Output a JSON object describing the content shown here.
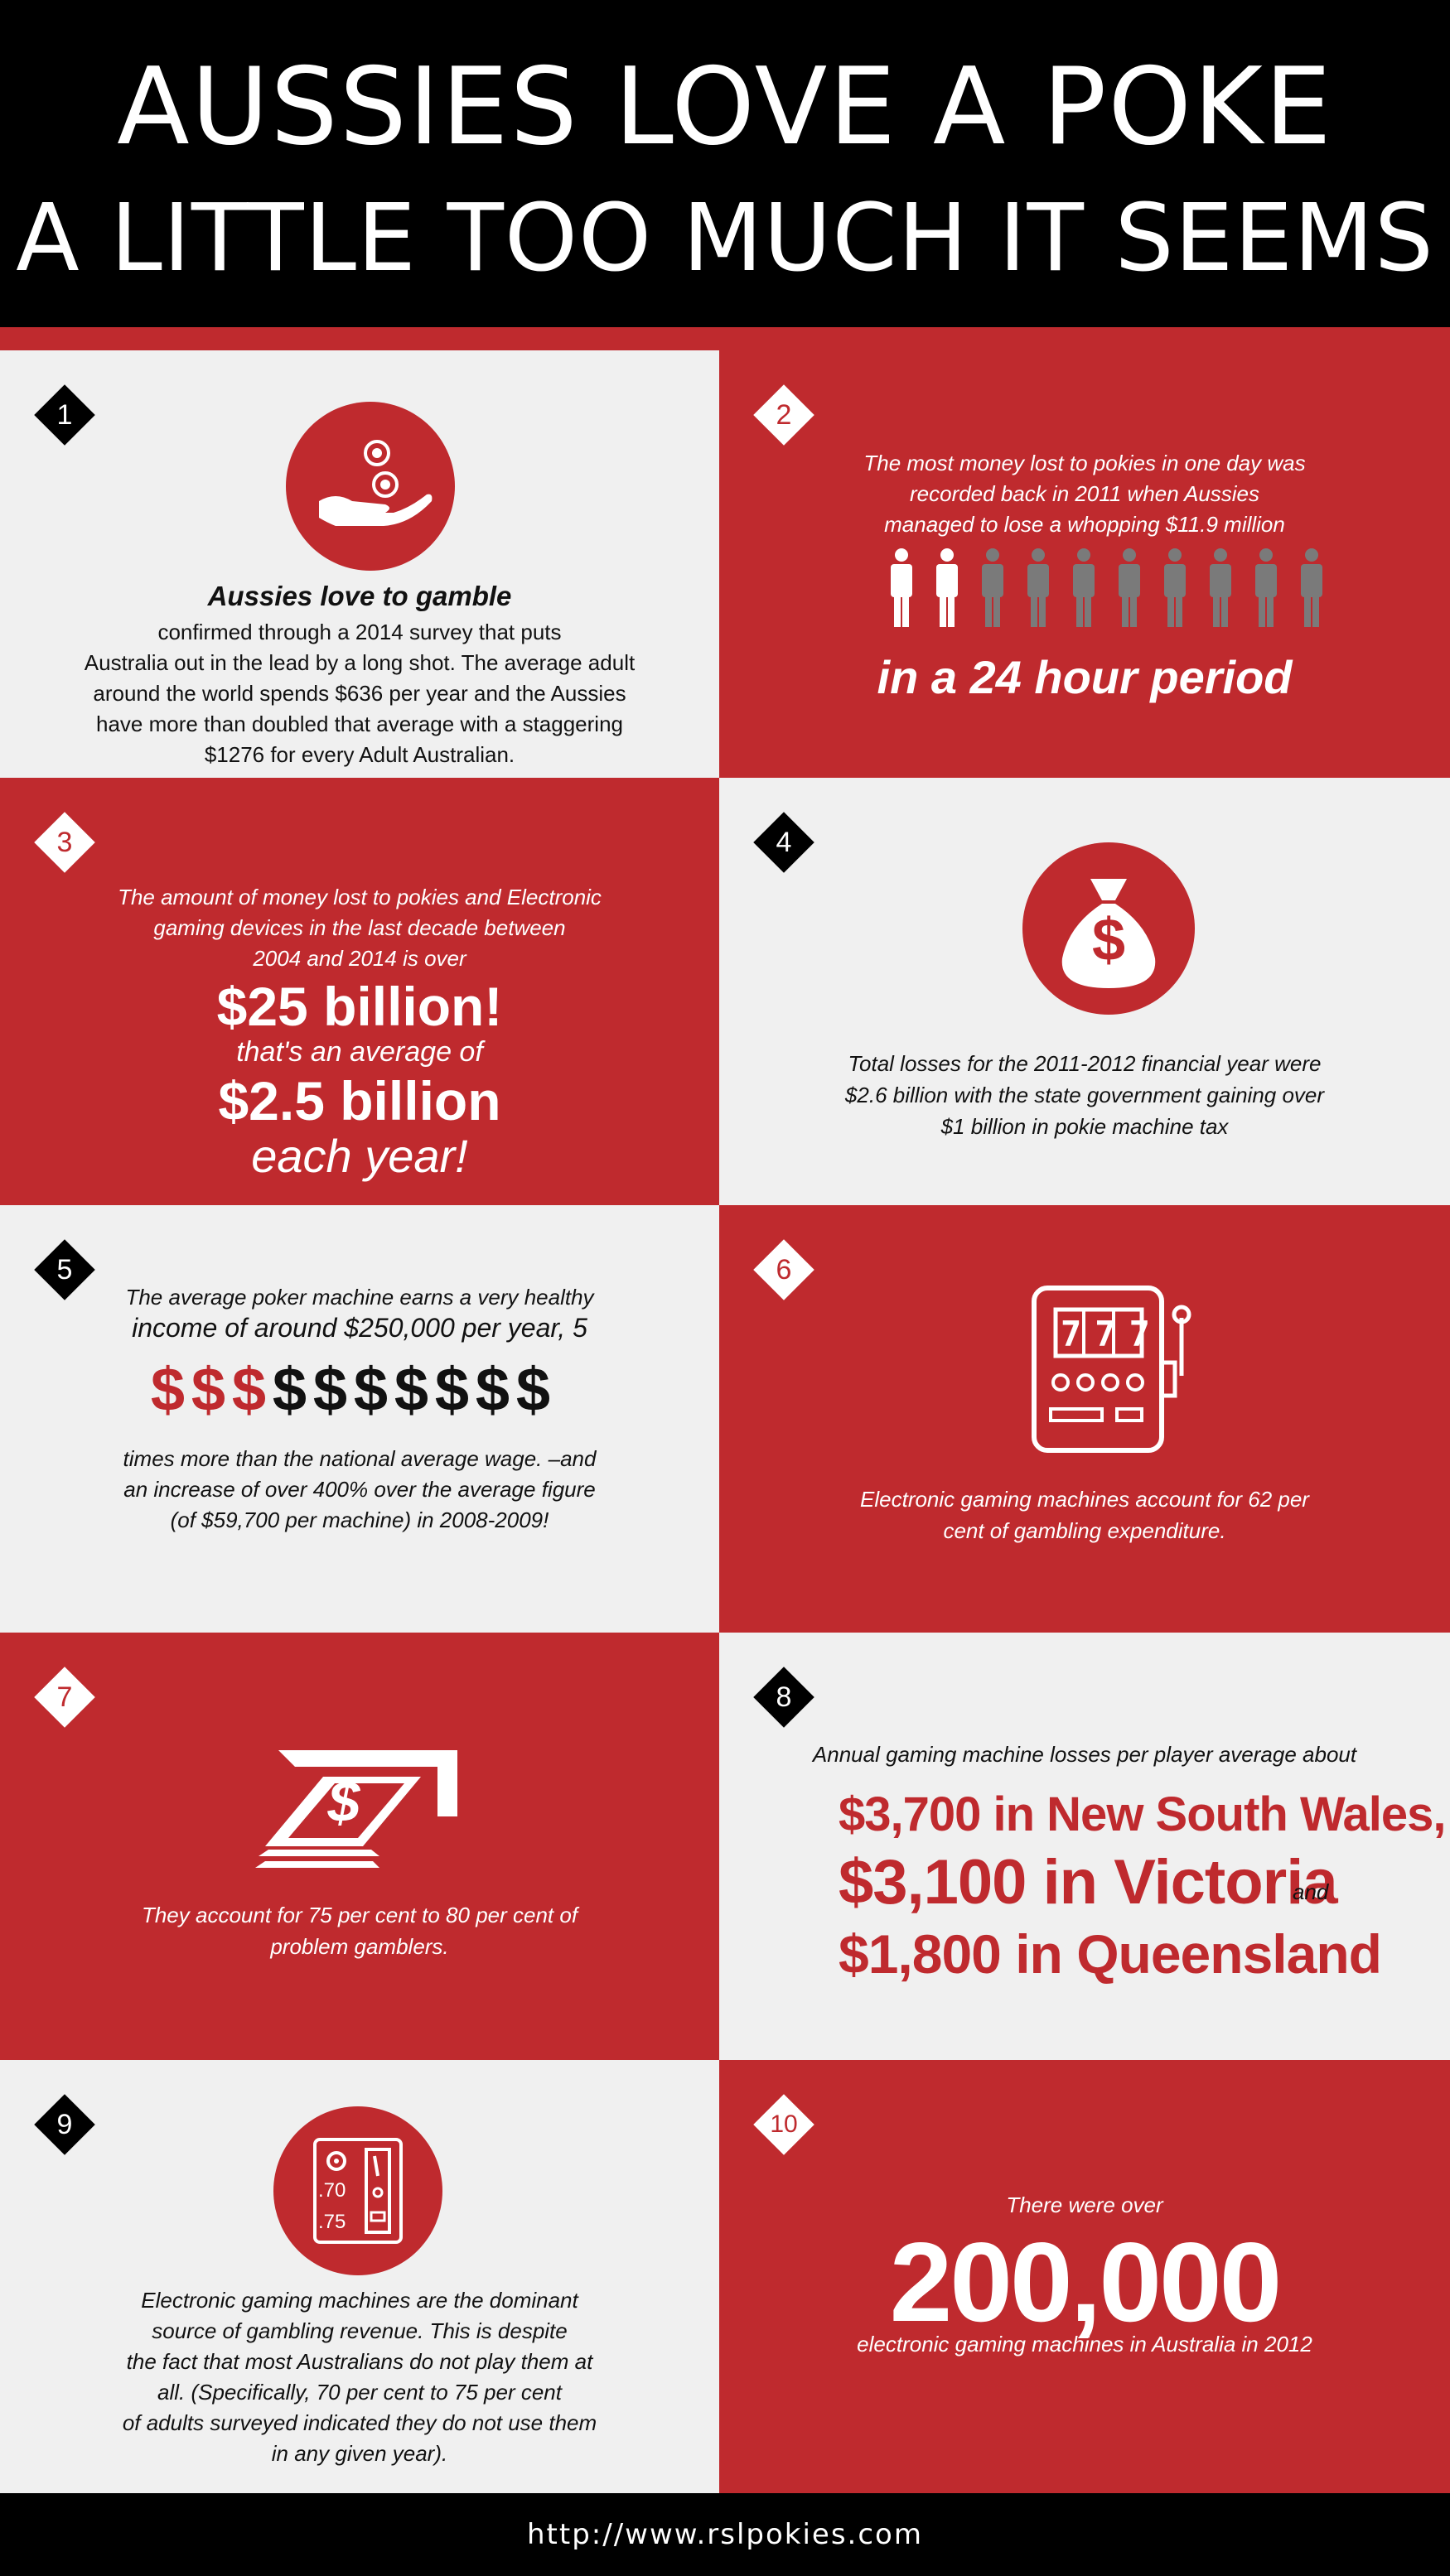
{
  "header": {
    "title_line1": "AUSSIES LOVE A POKE",
    "title_line2": "A LITTLE TOO MUCH IT SEEMS"
  },
  "panels": {
    "p1": {
      "number": "1",
      "heading": "Aussies love to gamble",
      "lines": [
        "confirmed through a 2014 survey that puts",
        "Australia out in the lead by a long shot. The average adult",
        "around the world spends $636 per year and the Aussies",
        "have more than doubled that average with a staggering",
        "$1276 for every Adult Australian."
      ]
    },
    "p2": {
      "number": "2",
      "lines": [
        "The most money lost to pokies in one day was",
        "recorded back in 2011 when Aussies",
        "managed to lose a whopping $11.9 million"
      ],
      "highlighted_people": 2,
      "total_people": 10,
      "big": "in a 24 hour period"
    },
    "p3": {
      "number": "3",
      "lines": [
        "The amount of money lost to pokies and Electronic",
        "gaming devices in the last decade between",
        "2004 and 2014 is over"
      ],
      "big1": "$25 billion!",
      "mid": "that's an average of",
      "big2": "$2.5 billion",
      "big3": "each year!"
    },
    "p4": {
      "number": "4",
      "bag_symbol": "$",
      "lines": [
        "Total losses for the 2011-2012 financial year were",
        "$2.6 billion with the state  government gaining over",
        "$1 billion in pokie machine tax"
      ]
    },
    "p5": {
      "number": "5",
      "line1": "The average poker machine earns a very healthy",
      "line2": "income of around $250,000 per year, 5",
      "dollar_symbol": "$",
      "highlighted_dollars": 3,
      "total_dollars": 10,
      "lines_after": [
        "times more than the national average wage. –and",
        "an increase of over 400% over the average figure",
        "(of $59,700 per machine) in 2008-2009!"
      ]
    },
    "p6": {
      "number": "6",
      "reels": "777",
      "lines": [
        "Electronic gaming machines account for 62 per",
        "cent of gambling expenditure."
      ]
    },
    "p7": {
      "number": "7",
      "bill_symbol": "$",
      "lines": [
        "They account for 75 per cent to 80 per cent of",
        "problem gamblers."
      ]
    },
    "p8": {
      "number": "8",
      "intro": "Annual gaming machine losses per player average about",
      "line1": "$3,700 in New South Wales,",
      "line2": "$3,100 in Victoria",
      "line2_suffix": "and",
      "line3": "$1,800 in Queensland"
    },
    "p9": {
      "number": "9",
      "coin_labels": [
        ".70",
        ".75"
      ],
      "lines": [
        "Electronic gaming machines are the dominant",
        "source of gambling revenue. This is despite",
        "the fact that most Australians do not play them at",
        "all. (Specifically, 70 per cent to 75 per cent",
        "of adults surveyed indicated they do not use them",
        "in any given year)."
      ]
    },
    "p10": {
      "number": "10",
      "top": "There were over",
      "big": "200,000",
      "bottom": "electronic gaming machines in Australia in 2012"
    }
  },
  "footer": {
    "url": "http://www.rslpokies.com"
  },
  "colors": {
    "red": "#bf2a2e",
    "light": "#f0f0f0",
    "black": "#000000",
    "gray": "#7a7a7a"
  }
}
